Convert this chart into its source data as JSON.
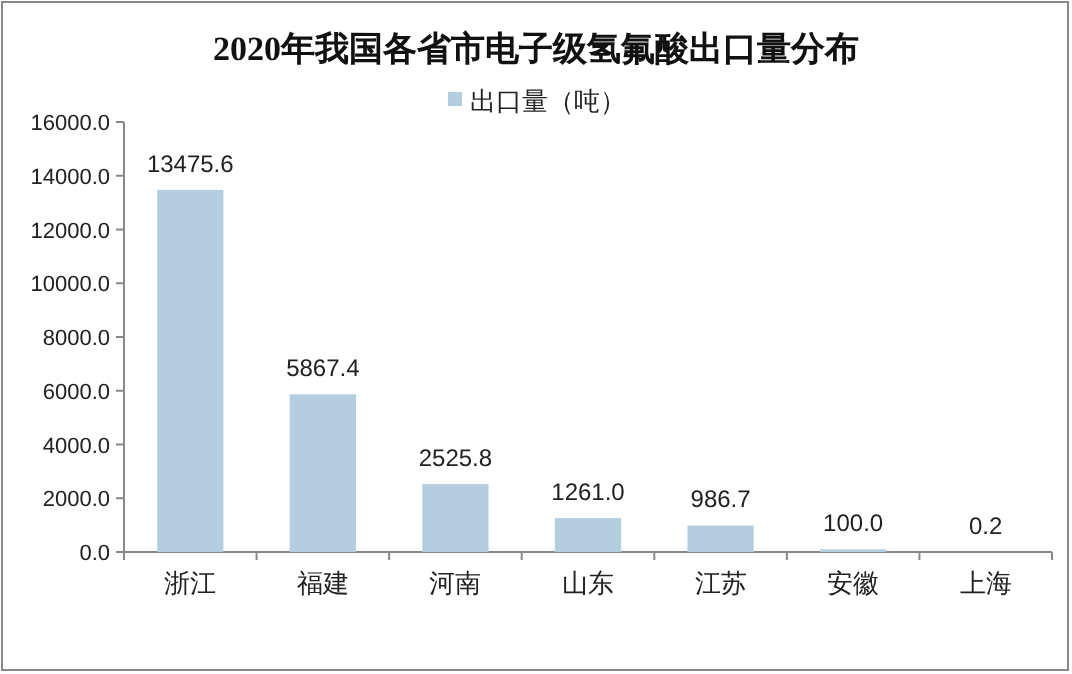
{
  "chart_data": {
    "type": "bar",
    "title": "2020年我国各省市电子级氢氟酸出口量分布",
    "categories": [
      "浙江",
      "福建",
      "河南",
      "山东",
      "江苏",
      "安徽",
      "上海"
    ],
    "series": [
      {
        "name": "出口量（吨）",
        "color": "#b4cee0",
        "values": [
          13475.6,
          5867.4,
          2525.8,
          1261.0,
          986.7,
          100.0,
          0.2
        ],
        "value_labels": [
          "13475.6",
          "5867.4",
          "2525.8",
          "1261.0",
          "986.7",
          "100.0",
          "0.2"
        ]
      }
    ],
    "ylim": [
      0,
      16000
    ],
    "yticks": [
      {
        "value": 0,
        "label": "0.0"
      },
      {
        "value": 2000,
        "label": "2000.0"
      },
      {
        "value": 4000,
        "label": "4000.0"
      },
      {
        "value": 6000,
        "label": "6000.0"
      },
      {
        "value": 8000,
        "label": "8000.0"
      },
      {
        "value": 10000,
        "label": "10000.0"
      },
      {
        "value": 12000,
        "label": "12000.0"
      },
      {
        "value": 14000,
        "label": "14000.0"
      },
      {
        "value": 16000,
        "label": "16000.0"
      }
    ],
    "grid": false,
    "legend": "top"
  }
}
